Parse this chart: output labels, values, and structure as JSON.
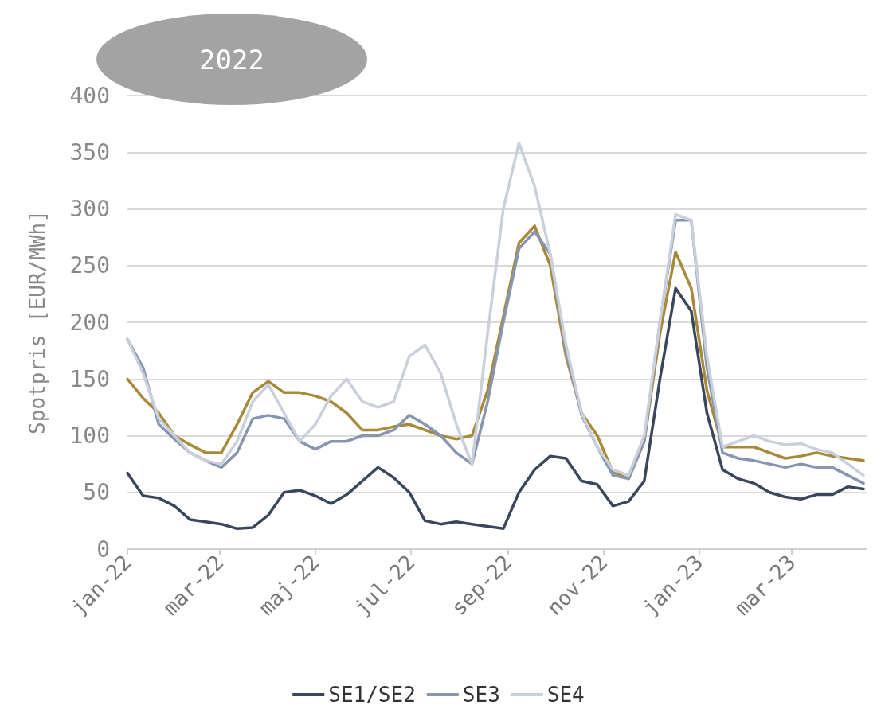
{
  "chart_data": {
    "type": "line",
    "title": "2022",
    "ylabel": "Spotpris [EUR/MWh]",
    "x": [
      "2022-01-01",
      "2022-01-11",
      "2022-01-21",
      "2022-01-31",
      "2022-02-10",
      "2022-02-20",
      "2022-03-02",
      "2022-03-12",
      "2022-03-22",
      "2022-04-01",
      "2022-04-11",
      "2022-04-21",
      "2022-05-01",
      "2022-05-11",
      "2022-05-21",
      "2022-05-31",
      "2022-06-10",
      "2022-06-20",
      "2022-06-30",
      "2022-07-10",
      "2022-07-20",
      "2022-07-30",
      "2022-08-09",
      "2022-08-19",
      "2022-08-29",
      "2022-09-08",
      "2022-09-18",
      "2022-09-28",
      "2022-10-08",
      "2022-10-18",
      "2022-10-28",
      "2022-11-07",
      "2022-11-17",
      "2022-11-27",
      "2022-12-07",
      "2022-12-17",
      "2022-12-27",
      "2023-01-06",
      "2023-01-16",
      "2023-01-26",
      "2023-02-05",
      "2023-02-15",
      "2023-02-25",
      "2023-03-07",
      "2023-03-17",
      "2023-03-27",
      "2023-04-06",
      "2023-04-16"
    ],
    "series": [
      {
        "color": "#a8893a",
        "values": [
          150,
          133,
          120,
          100,
          92,
          85,
          85,
          110,
          138,
          148,
          138,
          138,
          135,
          130,
          120,
          105,
          105,
          108,
          110,
          105,
          100,
          97,
          100,
          140,
          205,
          270,
          285,
          250,
          170,
          120,
          100,
          68,
          62,
          95,
          190,
          262,
          230,
          140,
          90,
          90,
          90,
          85,
          80,
          82,
          85,
          82,
          80,
          78
        ]
      },
      {
        "name": "SE1/SE2",
        "color": "#3a465b",
        "values": [
          67,
          47,
          45,
          38,
          26,
          24,
          22,
          18,
          19,
          30,
          50,
          52,
          47,
          40,
          48,
          60,
          72,
          63,
          50,
          25,
          22,
          24,
          22,
          20,
          18,
          50,
          70,
          82,
          80,
          60,
          57,
          38,
          42,
          60,
          150,
          230,
          210,
          120,
          70,
          62,
          58,
          50,
          46,
          44,
          48,
          48,
          55,
          53
        ]
      },
      {
        "name": "SE3",
        "color": "#8795b0",
        "values": [
          185,
          160,
          110,
          97,
          85,
          78,
          72,
          85,
          115,
          118,
          115,
          95,
          88,
          95,
          95,
          100,
          100,
          105,
          118,
          110,
          100,
          85,
          75,
          130,
          200,
          265,
          280,
          260,
          175,
          118,
          90,
          65,
          62,
          95,
          200,
          290,
          290,
          160,
          85,
          80,
          78,
          75,
          72,
          75,
          72,
          72,
          65,
          58
        ]
      },
      {
        "name": "SE4",
        "color": "#c9d0dc",
        "values": [
          185,
          155,
          115,
          100,
          85,
          78,
          75,
          95,
          130,
          145,
          120,
          95,
          110,
          135,
          150,
          130,
          125,
          130,
          170,
          180,
          155,
          110,
          75,
          190,
          300,
          358,
          320,
          260,
          180,
          120,
          90,
          70,
          65,
          100,
          200,
          295,
          290,
          170,
          90,
          95,
          100,
          95,
          92,
          93,
          88,
          85,
          75,
          65
        ]
      }
    ],
    "xlim": [
      "2022-01-01",
      "2023-04-18"
    ],
    "xticks": [
      {
        "value": "2022-01-01",
        "label": "jan-22"
      },
      {
        "value": "2022-03-01",
        "label": "mar-22"
      },
      {
        "value": "2022-05-01",
        "label": "maj-22"
      },
      {
        "value": "2022-07-01",
        "label": "jul-22"
      },
      {
        "value": "2022-09-01",
        "label": "sep-22"
      },
      {
        "value": "2022-11-01",
        "label": "nov-22"
      },
      {
        "value": "2023-01-01",
        "label": "jan-23"
      },
      {
        "value": "2023-03-01",
        "label": "mar-23"
      }
    ],
    "ylim": [
      0,
      400
    ],
    "yticks": [
      0,
      50,
      100,
      150,
      200,
      250,
      300,
      350,
      400
    ],
    "grid": "y",
    "legend": "bottom",
    "marker": "none",
    "line_style": "solid"
  }
}
